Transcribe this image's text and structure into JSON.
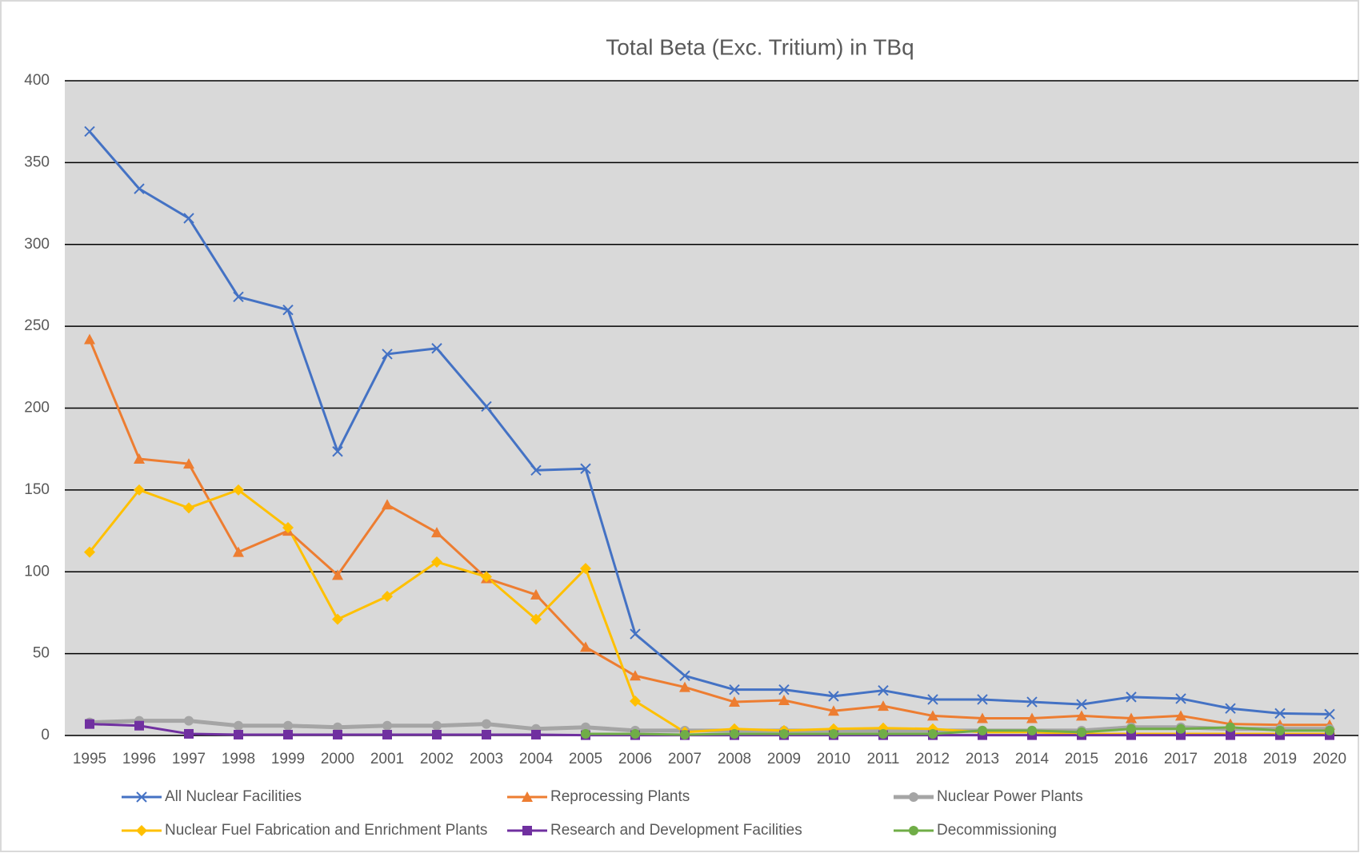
{
  "chart_data": {
    "type": "line",
    "title": "Total Beta (Exc. Tritium) in TBq",
    "categories": [
      "1995",
      "1996",
      "1997",
      "1998",
      "1999",
      "2000",
      "2001",
      "2002",
      "2003",
      "2004",
      "2005",
      "2006",
      "2007",
      "2008",
      "2009",
      "2010",
      "2011",
      "2012",
      "2013",
      "2014",
      "2015",
      "2016",
      "2017",
      "2018",
      "2019",
      "2020"
    ],
    "series": [
      {
        "name": "All Nuclear Facilities",
        "color": "#4472c4",
        "marker": "x",
        "values": [
          369,
          334,
          316,
          268,
          260,
          173.5,
          233,
          236.5,
          201,
          162,
          163,
          62,
          36.5,
          28,
          28,
          24,
          27.5,
          22,
          22,
          20.5,
          19,
          23.5,
          22.5,
          16.5,
          13.5,
          13
        ]
      },
      {
        "name": "Reprocessing Plants",
        "color": "#ed7d31",
        "marker": "triangle",
        "values": [
          242,
          169,
          166,
          112,
          125,
          98,
          141,
          124,
          96,
          86,
          54,
          36.5,
          29.5,
          20.5,
          21.5,
          15,
          18,
          12,
          10.5,
          10.5,
          12,
          10.5,
          12,
          7,
          6.5,
          6.5
        ]
      },
      {
        "name": "Nuclear Power Plants",
        "color": "#a5a5a5",
        "marker": "circle",
        "values": [
          8,
          9,
          9,
          6,
          6,
          5,
          6,
          6,
          7,
          4,
          5,
          3,
          3,
          3,
          3,
          3,
          3,
          3,
          3,
          3,
          3,
          5,
          5,
          4,
          4,
          4
        ]
      },
      {
        "name": "Nuclear Fuel Fabrication and Enrichment Plants",
        "color": "#ffc000",
        "marker": "diamond",
        "values": [
          112,
          150,
          139,
          150,
          127,
          71,
          85,
          106,
          97,
          71,
          102,
          21,
          2,
          4,
          3,
          4,
          4.5,
          4,
          2,
          2,
          1,
          1,
          1,
          1,
          1,
          1
        ]
      },
      {
        "name": "Research and Development Facilities",
        "color": "#7030a0",
        "marker": "square",
        "values": [
          7,
          6,
          1,
          0.5,
          0.5,
          0.5,
          0.5,
          0.5,
          0.5,
          0.5,
          0.2,
          0.2,
          0.2,
          0.2,
          0.2,
          0.2,
          0.2,
          0.2,
          0.2,
          0.2,
          0.2,
          0.2,
          0.2,
          0.2,
          0.2,
          0.2
        ]
      },
      {
        "name": "Decommissioning",
        "color": "#70ad47",
        "marker": "circle",
        "values": [
          null,
          null,
          null,
          null,
          null,
          null,
          null,
          null,
          null,
          null,
          1,
          1,
          0.5,
          1,
          1,
          1,
          1,
          1,
          3,
          3,
          2,
          4,
          4,
          5,
          3,
          3
        ]
      }
    ],
    "ylim": [
      0,
      400
    ],
    "yticks": [
      0,
      50,
      100,
      150,
      200,
      250,
      300,
      350,
      400
    ],
    "grid": true,
    "legend": "bottom"
  }
}
